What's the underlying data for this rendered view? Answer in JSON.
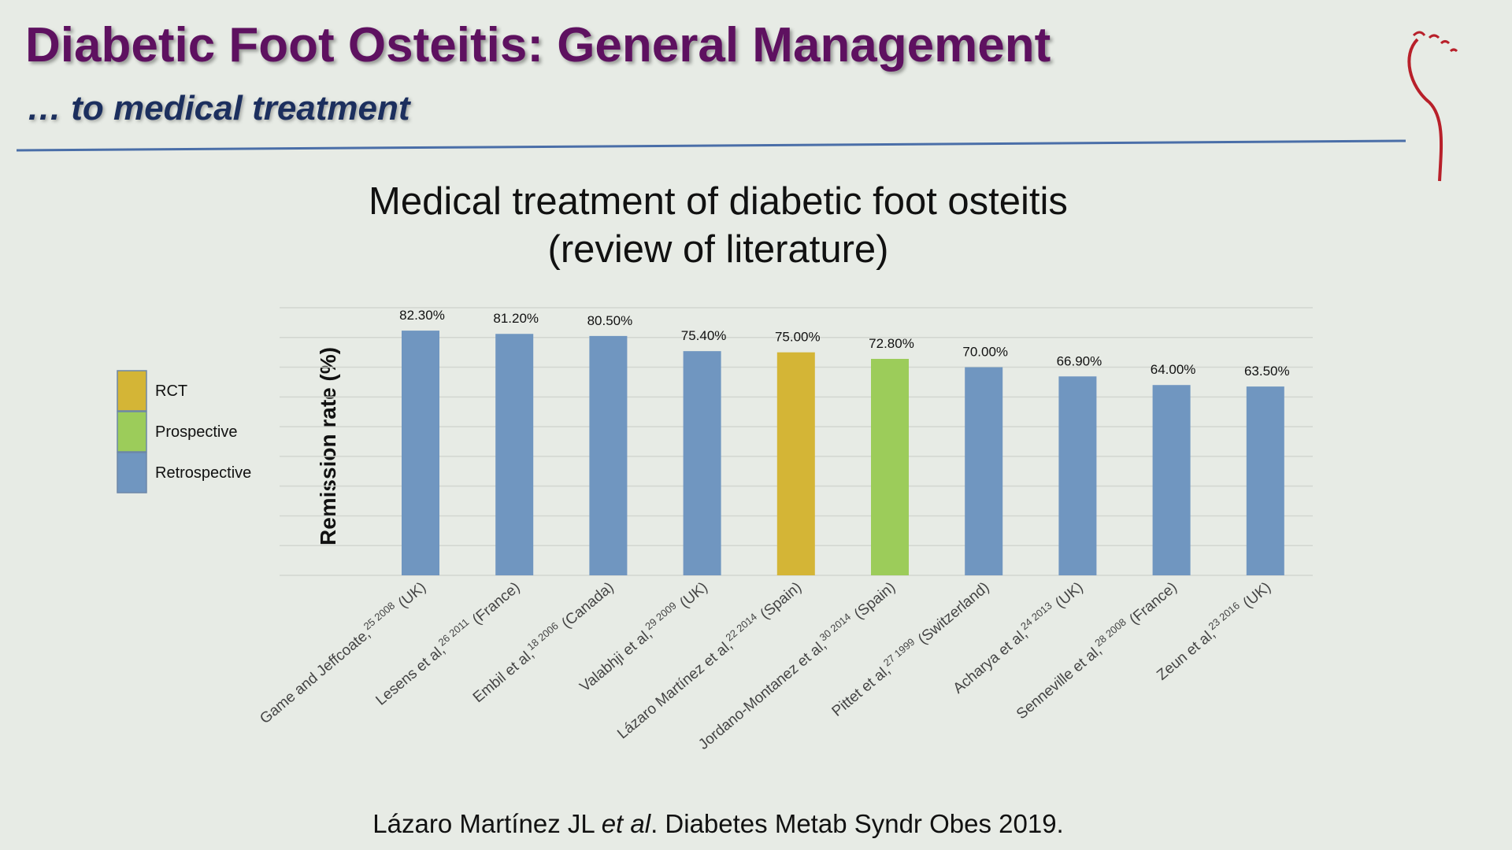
{
  "header": {
    "title": "Diabetic Foot Osteitis: General Management",
    "subtitle": "… to medical treatment"
  },
  "chart_data": {
    "type": "bar",
    "title": [
      "Medical treatment of diabetic foot osteitis",
      "(review of literature)"
    ],
    "y_label": "Remission rate (%)",
    "categories": [
      "Game and Jeffcoate,",
      "Lesens et al,",
      "Embil et al,",
      "Valabhji et al,",
      "Lázaro Martínez et al,",
      "Jordano-Montanez et al,",
      "Pittet et al,",
      "Acharya et al,",
      "Senneville et al,",
      "Zeun et al,"
    ],
    "references": [
      "25 2008",
      "26 2011",
      "18 2006",
      "29 2009",
      "22 2014",
      "30 2014",
      "27 1999",
      "24 2013",
      "28 2008",
      "23 2016"
    ],
    "countries": [
      "(UK)",
      "(France)",
      "(Canada)",
      "(UK)",
      "(Spain)",
      "(Spain)",
      "(Switzerland)",
      "(UK)",
      "(France)",
      "(UK)"
    ],
    "values": [
      82.3,
      81.2,
      80.5,
      75.4,
      75.0,
      72.8,
      70.0,
      66.9,
      64.0,
      63.5
    ],
    "value_labels": [
      "82.30%",
      "81.20%",
      "80.50%",
      "75.40%",
      "75.00%",
      "72.80%",
      "70.00%",
      "66.90%",
      "64.00%",
      "63.50%"
    ],
    "colors": [
      "#7096c0",
      "#7096c0",
      "#7096c0",
      "#7096c0",
      "#d4b536",
      "#9ccc5a",
      "#7096c0",
      "#7096c0",
      "#7096c0",
      "#7096c0"
    ],
    "legend": [
      {
        "name": "RCT",
        "color": "#d4b536"
      },
      {
        "name": "Prospective",
        "color": "#9ccc5a"
      },
      {
        "name": "Retrospective",
        "color": "#7096c0"
      }
    ],
    "ylim": [
      0,
      90
    ],
    "yticks": [
      0,
      10,
      20,
      30,
      40,
      50,
      60,
      70,
      80,
      90
    ],
    "grid": true
  },
  "citation": {
    "authors": "Lázaro Martínez JL ",
    "etal": "et al",
    "rest": ". Diabetes Metab Syndr Obes 2019."
  }
}
